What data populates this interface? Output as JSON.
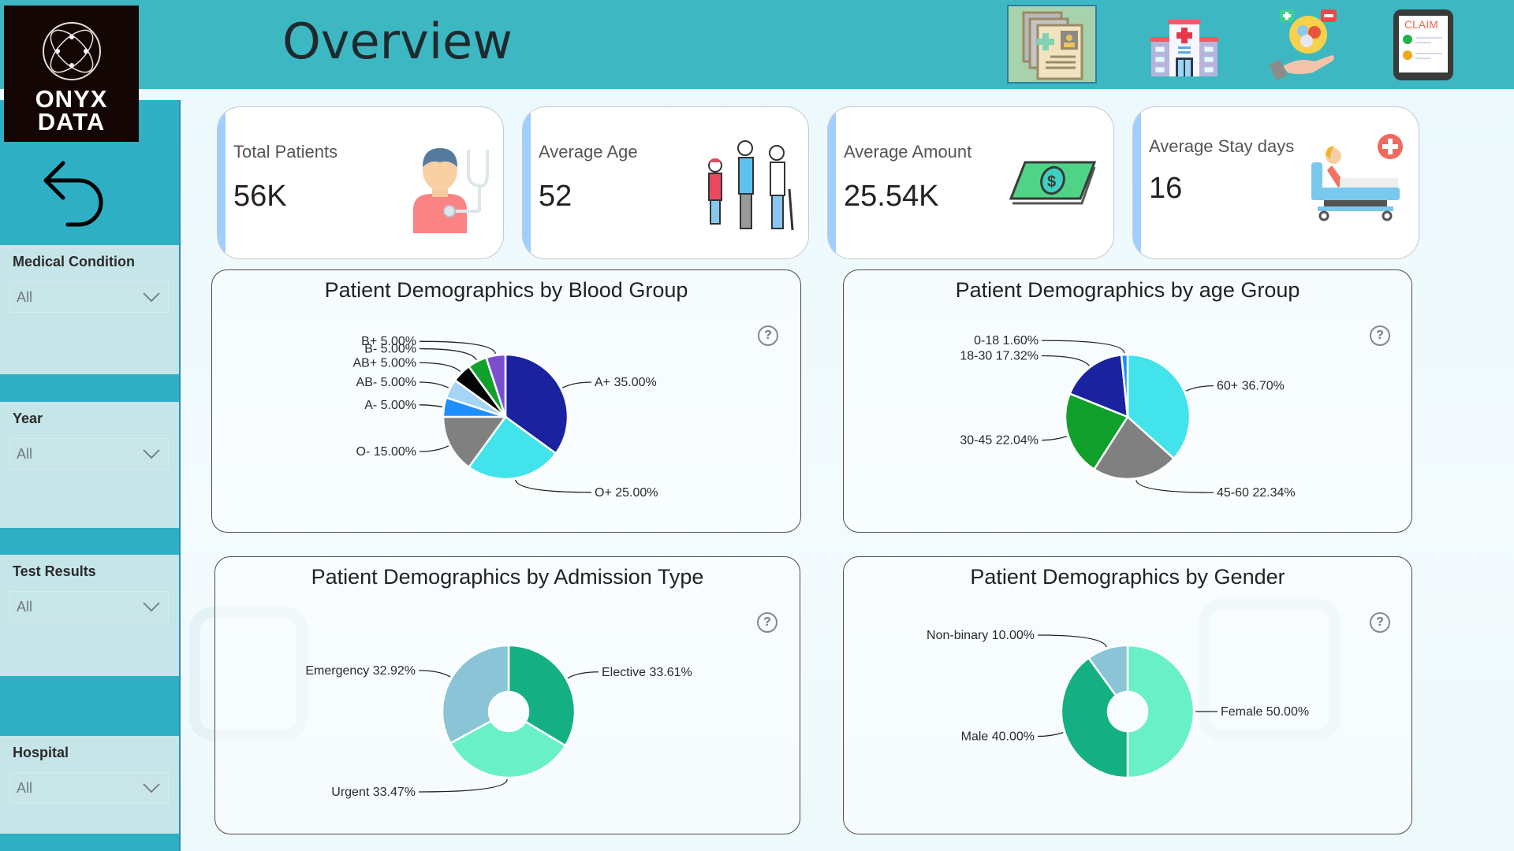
{
  "header": {
    "title": "Overview",
    "nav_icons": [
      {
        "name": "patient-records-icon",
        "selected": true
      },
      {
        "name": "hospital-icon",
        "selected": false
      },
      {
        "name": "medication-care-icon",
        "selected": false
      },
      {
        "name": "claim-tablet-icon",
        "selected": false,
        "label": "CLAIM"
      }
    ]
  },
  "logo": {
    "line1": "ONYX",
    "line2": "DATA"
  },
  "sidebar": {
    "back_icon": "back-arrow-icon",
    "filters": [
      {
        "label": "Medical Condition",
        "value": "All"
      },
      {
        "label": "Year",
        "value": "All"
      },
      {
        "label": "Test Results",
        "value": "All"
      },
      {
        "label": "Hospital",
        "value": "All"
      }
    ]
  },
  "kpis": [
    {
      "label": "Total Patients",
      "value": "56K",
      "icon": "doctor-icon"
    },
    {
      "label": "Average Age",
      "value": "52",
      "icon": "age-people-icon"
    },
    {
      "label": "Average Amount",
      "value": "25.54K",
      "icon": "money-icon"
    },
    {
      "label": "Average Stay days",
      "value": "16",
      "icon": "hospital-bed-icon"
    }
  ],
  "colors": {
    "header": "#3db8c2",
    "sidebar": "#2eafc4",
    "filter_bg": "#c6e5e8",
    "kpi_accent": "#9fcfff"
  },
  "chart_data": [
    {
      "type": "pie",
      "title": "Patient Demographics by Blood Group",
      "categories": [
        "A+",
        "O+",
        "O-",
        "A-",
        "AB-",
        "AB+",
        "B-",
        "B+"
      ],
      "values": [
        35.0,
        25.0,
        15.0,
        5.0,
        5.0,
        5.0,
        5.0,
        5.0
      ],
      "labels": [
        "A+ 35.00%",
        "O+ 25.00%",
        "O- 15.00%",
        "A- 5.00%",
        "AB- 5.00%",
        "AB+ 5.00%",
        "B- 5.00%",
        "B+ 5.00%"
      ],
      "colors": [
        "#1a22a0",
        "#42e3ea",
        "#808080",
        "#1e8fff",
        "#a6d4f7",
        "#050505",
        "#12a02c",
        "#7a4fcf"
      ],
      "unit": "%"
    },
    {
      "type": "pie",
      "title": "Patient Demographics by age Group",
      "categories": [
        "60+",
        "45-60",
        "30-45",
        "18-30",
        "0-18"
      ],
      "values": [
        36.7,
        22.34,
        22.04,
        17.32,
        1.6
      ],
      "labels": [
        "60+ 36.70%",
        "45-60 22.34%",
        "30-45 22.04%",
        "18-30 17.32%",
        "0-18 1.60%"
      ],
      "colors": [
        "#42e3ea",
        "#808080",
        "#12a02c",
        "#1a22a0",
        "#1e8fff"
      ],
      "unit": "%"
    },
    {
      "type": "pie",
      "donut": true,
      "title": "Patient Demographics by Admission Type",
      "categories": [
        "Elective",
        "Urgent",
        "Emergency"
      ],
      "values": [
        33.61,
        33.47,
        32.92
      ],
      "labels": [
        "Elective 33.61%",
        "Urgent 33.47%",
        "Emergency 32.92%"
      ],
      "colors": [
        "#14b083",
        "#69f0c6",
        "#8ac4d6"
      ],
      "unit": "%"
    },
    {
      "type": "pie",
      "donut": true,
      "title": "Patient Demographics by Gender",
      "categories": [
        "Female",
        "Male",
        "Non-binary"
      ],
      "values": [
        50.0,
        40.0,
        10.0
      ],
      "labels": [
        "Female 50.00%",
        "Male 40.00%",
        "Non-binary 10.00%"
      ],
      "colors": [
        "#69f0c6",
        "#14b083",
        "#8ac4d6"
      ],
      "unit": "%"
    }
  ]
}
